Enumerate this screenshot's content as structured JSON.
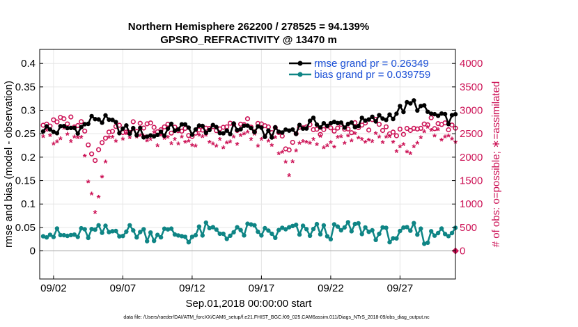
{
  "chart_data": {
    "type": "line",
    "title": "Northern Hemisphere 262200 / 278525 = 94.139%",
    "subtitle": "GPSRO_REFRACTIVITY @ 13470 m",
    "xlabel": "Sep.01,2018 00:00:00 start",
    "ylabel": "rmse and bias (model - observation)",
    "ylabel_right": "# of obs: o=possible; ∗=assimilated",
    "x_tick_labels": [
      "09/02",
      "09/07",
      "09/12",
      "09/17",
      "09/22",
      "09/27"
    ],
    "x_tick_values": [
      1,
      6,
      11,
      16,
      21,
      26
    ],
    "xlim": [
      0,
      30
    ],
    "ylim": [
      -0.06,
      0.43
    ],
    "y_ticks": [
      0,
      0.05,
      0.1,
      0.15,
      0.2,
      0.25,
      0.3,
      0.35,
      0.4
    ],
    "y_tick_labels": [
      "0",
      "0.05",
      "0.1",
      "0.15",
      "0.2",
      "0.25",
      "0.3",
      "0.35",
      "0.4"
    ],
    "ylim_right": [
      -600,
      4300
    ],
    "y_ticks_right": [
      0,
      500,
      1000,
      1500,
      2000,
      2500,
      3000,
      3500,
      4000
    ],
    "y_tick_labels_right": [
      "0",
      "500",
      "1000",
      "1500",
      "2000",
      "2500",
      "3000",
      "3500",
      "4000"
    ],
    "grid": true,
    "legend_position": "top-right",
    "colors": {
      "rmse": "#000000",
      "bias": "#0f8585",
      "obs": "#cc1155",
      "zero": "#aaaaaa"
    },
    "series": [
      {
        "name": "rmse grand pr = 0.26349",
        "axis": "left",
        "control_points": [
          [
            0,
            0.265
          ],
          [
            1,
            0.255
          ],
          [
            2,
            0.262
          ],
          [
            3,
            0.262
          ],
          [
            4,
            0.285
          ],
          [
            5,
            0.275
          ],
          [
            6,
            0.258
          ],
          [
            7,
            0.255
          ],
          [
            8,
            0.245
          ],
          [
            9,
            0.255
          ],
          [
            10,
            0.265
          ],
          [
            11,
            0.258
          ],
          [
            12,
            0.262
          ],
          [
            13,
            0.252
          ],
          [
            14,
            0.262
          ],
          [
            15,
            0.265
          ],
          [
            16,
            0.252
          ],
          [
            17,
            0.252
          ],
          [
            18,
            0.258
          ],
          [
            19,
            0.265
          ],
          [
            20,
            0.275
          ],
          [
            21,
            0.268
          ],
          [
            22,
            0.272
          ],
          [
            23,
            0.272
          ],
          [
            24,
            0.278
          ],
          [
            25,
            0.285
          ],
          [
            26,
            0.3
          ],
          [
            27,
            0.315
          ],
          [
            28,
            0.295
          ],
          [
            29,
            0.282
          ],
          [
            30,
            0.282
          ]
        ]
      },
      {
        "name": "bias grand pr = 0.039759",
        "axis": "left",
        "control_points": [
          [
            0,
            0.05
          ],
          [
            1,
            0.035
          ],
          [
            2,
            0.03
          ],
          [
            3,
            0.035
          ],
          [
            4,
            0.04
          ],
          [
            5,
            0.04
          ],
          [
            6,
            0.045
          ],
          [
            7,
            0.04
          ],
          [
            8,
            0.035
          ],
          [
            9,
            0.04
          ],
          [
            10,
            0.035
          ],
          [
            11,
            0.03
          ],
          [
            12,
            0.045
          ],
          [
            13,
            0.04
          ],
          [
            14,
            0.035
          ],
          [
            15,
            0.045
          ],
          [
            16,
            0.04
          ],
          [
            17,
            0.035
          ],
          [
            18,
            0.045
          ],
          [
            19,
            0.04
          ],
          [
            20,
            0.045
          ],
          [
            21,
            0.04
          ],
          [
            22,
            0.045
          ],
          [
            23,
            0.05
          ],
          [
            24,
            0.04
          ],
          [
            25,
            0.035
          ],
          [
            26,
            0.03
          ],
          [
            27,
            0.045
          ],
          [
            28,
            0.025
          ],
          [
            29,
            0.05
          ],
          [
            30,
            0.04
          ]
        ]
      },
      {
        "name": "obs possible",
        "axis": "right",
        "control_points": [
          [
            0,
            2750
          ],
          [
            1,
            2700
          ],
          [
            2,
            2800
          ],
          [
            3,
            2700
          ],
          [
            4,
            2000
          ],
          [
            5,
            2650
          ],
          [
            6,
            2600
          ],
          [
            7,
            2650
          ],
          [
            8,
            2650
          ],
          [
            9,
            2600
          ],
          [
            10,
            2600
          ],
          [
            11,
            2550
          ],
          [
            12,
            2650
          ],
          [
            13,
            2600
          ],
          [
            14,
            2650
          ],
          [
            15,
            2700
          ],
          [
            16,
            2600
          ],
          [
            17,
            2550
          ],
          [
            18,
            2200
          ],
          [
            19,
            2650
          ],
          [
            20,
            2600
          ],
          [
            21,
            2600
          ],
          [
            22,
            2600
          ],
          [
            23,
            2650
          ],
          [
            24,
            2700
          ],
          [
            25,
            2650
          ],
          [
            26,
            2500
          ],
          [
            27,
            2600
          ],
          [
            28,
            2750
          ],
          [
            29,
            2700
          ],
          [
            30,
            2650
          ]
        ]
      },
      {
        "name": "obs assimilated",
        "axis": "right",
        "control_points": [
          [
            0,
            2550
          ],
          [
            1,
            2400
          ],
          [
            2,
            2500
          ],
          [
            3,
            2350
          ],
          [
            4,
            850
          ],
          [
            5,
            2300
          ],
          [
            6,
            2400
          ],
          [
            7,
            2450
          ],
          [
            8,
            2400
          ],
          [
            9,
            2350
          ],
          [
            10,
            2350
          ],
          [
            11,
            2300
          ],
          [
            12,
            2400
          ],
          [
            13,
            2300
          ],
          [
            14,
            2400
          ],
          [
            15,
            2400
          ],
          [
            16,
            2350
          ],
          [
            17,
            2300
          ],
          [
            18,
            1700
          ],
          [
            19,
            2400
          ],
          [
            20,
            2350
          ],
          [
            21,
            2300
          ],
          [
            22,
            2350
          ],
          [
            23,
            2400
          ],
          [
            24,
            2450
          ],
          [
            25,
            2400
          ],
          [
            26,
            2150
          ],
          [
            27,
            2200
          ],
          [
            28,
            2500
          ],
          [
            29,
            2450
          ],
          [
            30,
            2400
          ]
        ]
      }
    ],
    "footnote": "data file: /Users/raeder/DAI/ATM_forcXX/CAM6_setup/f.e21.FHIST_BGC.f09_025.CAM6assim.011/Diags_NTrS_2018-09/obs_diag_output.nc"
  }
}
